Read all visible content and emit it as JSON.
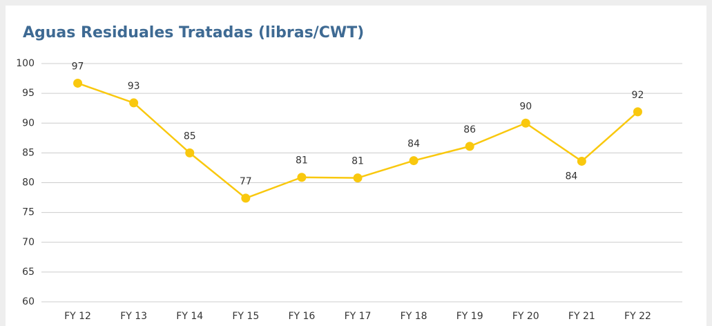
{
  "chart_data": {
    "type": "line",
    "title": "Aguas Residuales Tratadas (libras/CWT)",
    "categories": [
      "FY 12",
      "FY 13",
      "FY 14",
      "FY 15",
      "FY 16",
      "FY 17",
      "FY 18",
      "FY 19",
      "FY 20",
      "FY 21",
      "FY 22"
    ],
    "values": [
      96.7,
      93.4,
      85,
      77.4,
      80.9,
      80.8,
      83.7,
      86.1,
      90,
      83.6,
      91.9
    ],
    "value_labels": [
      "97",
      "93",
      "85",
      "77",
      "81",
      "81",
      "84",
      "86",
      "90",
      "84",
      "92"
    ],
    "color": "#f9c80e",
    "ylim": [
      60,
      100
    ],
    "yticks": [
      60,
      65,
      70,
      75,
      80,
      85,
      90,
      95,
      100
    ],
    "grid": true
  }
}
